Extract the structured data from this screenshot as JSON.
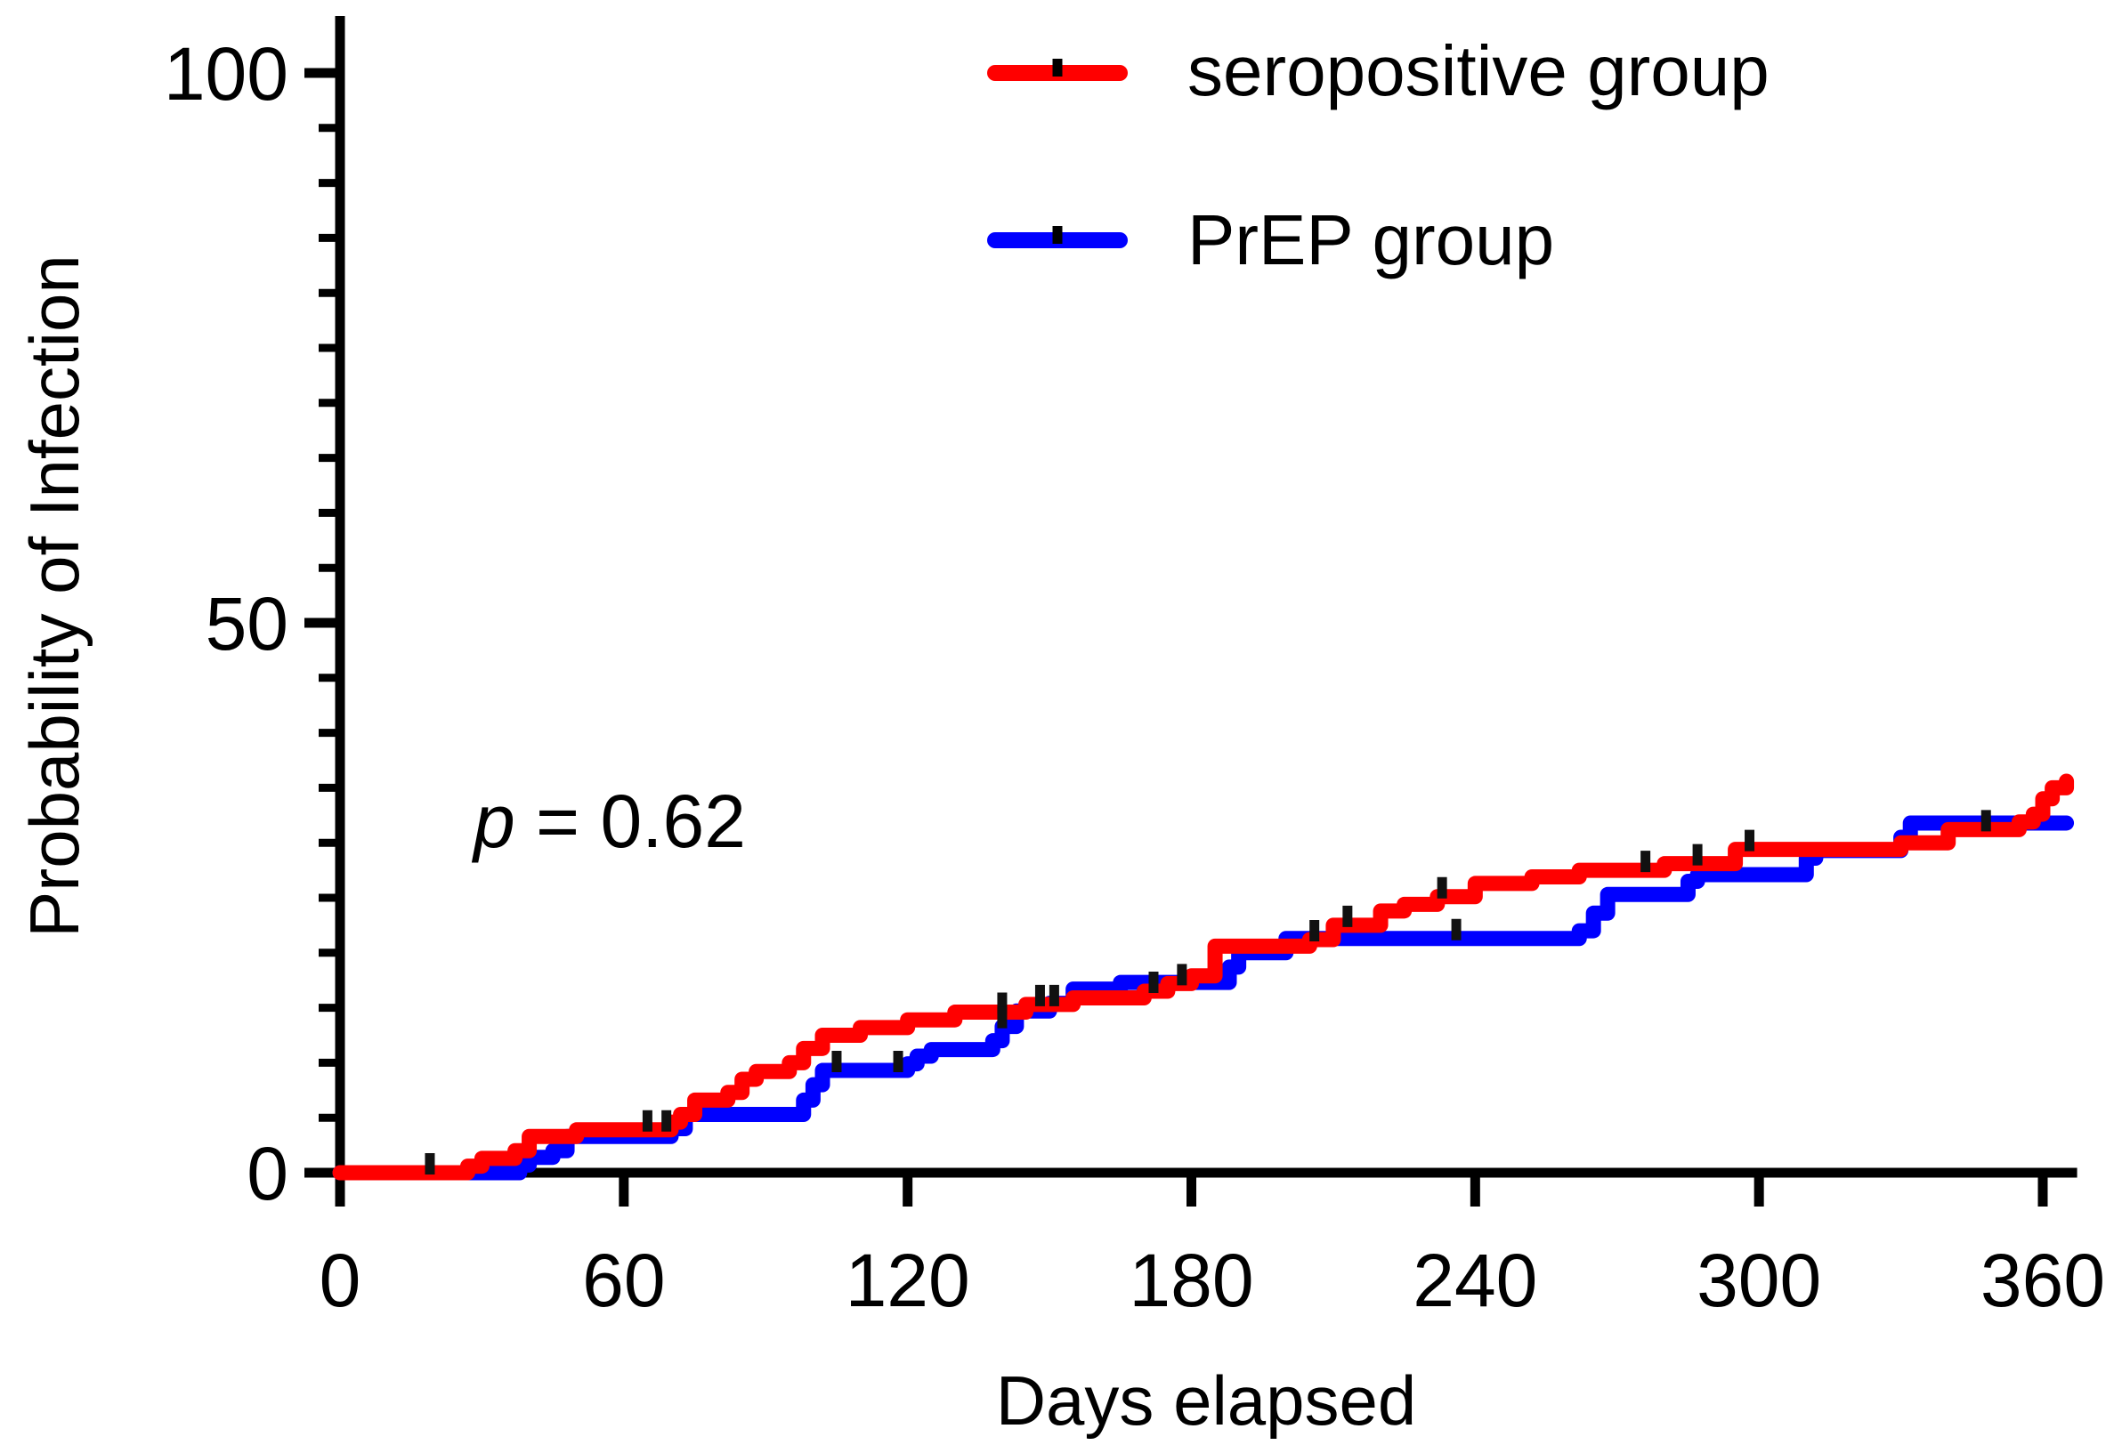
{
  "chart_data": {
    "type": "line",
    "subtype": "step (Kaplan-Meier cumulative incidence)",
    "title": "",
    "xlabel": "Days elapsed",
    "ylabel": "Probability of Infection",
    "xlim": [
      0,
      365
    ],
    "ylim": [
      0,
      100
    ],
    "x_ticks": [
      0,
      60,
      120,
      180,
      240,
      300,
      360
    ],
    "x_tick_labels": [
      "0",
      "60",
      "120",
      "180",
      "240",
      "300",
      "360"
    ],
    "y_ticks": [
      0,
      50,
      100
    ],
    "y_tick_labels": [
      "0",
      "50",
      "100"
    ],
    "y_minor_step": 5,
    "annotation": {
      "prefix": "p",
      "text": " = 0.62"
    },
    "legend_position": "top-right",
    "series": [
      {
        "name": "seropositive group",
        "color": "#ff0000",
        "steps": [
          [
            0,
            0
          ],
          [
            25,
            0
          ],
          [
            27,
            0.6
          ],
          [
            30,
            1.3
          ],
          [
            37,
            2.0
          ],
          [
            40,
            3.3
          ],
          [
            50,
            3.9
          ],
          [
            70,
            4.6
          ],
          [
            72,
            5.3
          ],
          [
            75,
            6.6
          ],
          [
            82,
            7.3
          ],
          [
            85,
            8.5
          ],
          [
            88,
            9.2
          ],
          [
            95,
            10.0
          ],
          [
            98,
            11.3
          ],
          [
            102,
            12.5
          ],
          [
            110,
            13.2
          ],
          [
            120,
            13.9
          ],
          [
            130,
            14.6
          ],
          [
            145,
            15.3
          ],
          [
            155,
            15.9
          ],
          [
            170,
            16.5
          ],
          [
            175,
            17.2
          ],
          [
            180,
            17.9
          ],
          [
            185,
            20.6
          ],
          [
            205,
            21.2
          ],
          [
            210,
            22.5
          ],
          [
            220,
            23.8
          ],
          [
            225,
            24.4
          ],
          [
            232,
            25.1
          ],
          [
            240,
            26.3
          ],
          [
            252,
            26.9
          ],
          [
            262,
            27.5
          ],
          [
            280,
            28.1
          ],
          [
            295,
            29.4
          ],
          [
            330,
            30.0
          ],
          [
            340,
            31.2
          ],
          [
            355,
            31.9
          ],
          [
            358,
            32.6
          ],
          [
            360,
            34.0
          ],
          [
            362,
            35.0
          ],
          [
            365,
            35.6
          ]
        ],
        "censor_x": [
          19,
          65,
          69,
          140,
          148,
          151,
          172,
          178,
          206,
          213,
          233,
          276,
          287,
          298,
          348
        ]
      },
      {
        "name": "PrEP group",
        "color": "#0000ff",
        "steps": [
          [
            0,
            0
          ],
          [
            28,
            0
          ],
          [
            38,
            0.7
          ],
          [
            40,
            1.4
          ],
          [
            45,
            2.0
          ],
          [
            48,
            3.3
          ],
          [
            70,
            4.0
          ],
          [
            73,
            5.3
          ],
          [
            98,
            6.6
          ],
          [
            100,
            8.0
          ],
          [
            102,
            9.3
          ],
          [
            120,
            9.9
          ],
          [
            122,
            10.6
          ],
          [
            125,
            11.2
          ],
          [
            138,
            12.0
          ],
          [
            140,
            13.3
          ],
          [
            143,
            14.7
          ],
          [
            150,
            15.4
          ],
          [
            155,
            16.7
          ],
          [
            165,
            17.3
          ],
          [
            188,
            18.7
          ],
          [
            190,
            20.0
          ],
          [
            200,
            21.3
          ],
          [
            262,
            22.0
          ],
          [
            265,
            23.6
          ],
          [
            268,
            25.3
          ],
          [
            285,
            26.5
          ],
          [
            287,
            27.1
          ],
          [
            310,
            28.6
          ],
          [
            312,
            29.3
          ],
          [
            330,
            30.5
          ],
          [
            332,
            31.8
          ],
          [
            365,
            31.8
          ]
        ],
        "censor_x": [
          105,
          118,
          140,
          236
        ]
      }
    ]
  }
}
